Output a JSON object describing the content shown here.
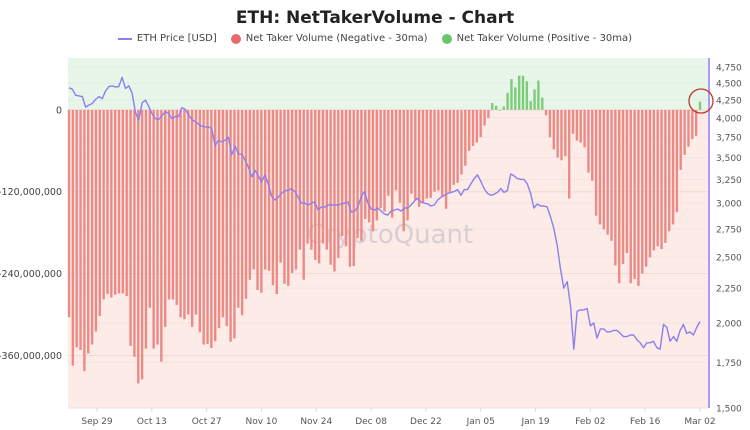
{
  "chart_data": {
    "type": "bar+line",
    "title": "ETH: NetTakerVolume - Chart",
    "watermark": "CryptoQuant",
    "legend": [
      {
        "name": "ETH Price [USD]",
        "kind": "line",
        "color": "#8b7ff0"
      },
      {
        "name": "Net Taker Volume (Negative - 30ma)",
        "kind": "dot",
        "color": "#e86b6b"
      },
      {
        "name": "Net Taker Volume (Positive - 30ma)",
        "kind": "dot",
        "color": "#6cc46a"
      }
    ],
    "legend_position": "top-center",
    "x_tick_labels": [
      "Sep 29",
      "Oct 13",
      "Oct 27",
      "Nov 10",
      "Nov 24",
      "Dec 08",
      "Dec 22",
      "Jan 05",
      "Jan 19",
      "Feb 02",
      "Feb 16",
      "Mar 02"
    ],
    "x_start_date": "Sep 22",
    "x_end_date": "Mar 03",
    "left_axis": {
      "ticks": [
        0,
        -120000000,
        -240000000,
        -360000000
      ],
      "tick_labels": [
        "0",
        "-120,000,000",
        "-240,000,000",
        "-360,000,000"
      ],
      "range": [
        -437000000,
        76000000
      ]
    },
    "right_axis": {
      "scale": "log",
      "ticks": [
        4750,
        4500,
        4250,
        4000,
        3750,
        3500,
        3250,
        3000,
        2750,
        2500,
        2250,
        2000,
        1750,
        1500
      ],
      "tick_labels": [
        "4,750",
        "4,500",
        "4,250",
        "4,000",
        "3,750",
        "3,500",
        "3,250",
        "3,000",
        "2,750",
        "2,500",
        "2,250",
        "2,000",
        "1,750",
        "1,500"
      ],
      "range": [
        1500,
        4900
      ]
    },
    "net_taker_volume_millions": [
      -304,
      -375,
      -348,
      -352,
      -383,
      -357,
      -344,
      -325,
      -302,
      -278,
      -270,
      -275,
      -271,
      -269,
      -269,
      -273,
      -346,
      -362,
      -401,
      -395,
      -350,
      -290,
      -350,
      -344,
      -369,
      -318,
      -278,
      -278,
      -286,
      -304,
      -307,
      -300,
      -318,
      -300,
      -326,
      -344,
      -343,
      -349,
      -339,
      -320,
      -304,
      -317,
      -340,
      -335,
      -290,
      -301,
      -277,
      -249,
      -234,
      -264,
      -268,
      -234,
      -236,
      -257,
      -270,
      -224,
      -255,
      -258,
      -239,
      -234,
      -205,
      -249,
      -196,
      -205,
      -220,
      -225,
      -196,
      -205,
      -227,
      -237,
      -217,
      -185,
      -200,
      -230,
      -229,
      -188,
      -192,
      -160,
      -165,
      -178,
      -162,
      -144,
      -149,
      -126,
      -158,
      -118,
      -136,
      -178,
      -162,
      -123,
      -132,
      -142,
      -137,
      -130,
      -129,
      -120,
      -118,
      -128,
      -145,
      -120,
      -110,
      -107,
      -95,
      -82,
      -60,
      -53,
      -48,
      -40,
      -23,
      -12,
      10,
      6,
      0,
      5,
      25,
      45,
      33,
      50,
      50,
      42,
      13,
      30,
      43,
      18,
      -8,
      -40,
      -58,
      -70,
      -74,
      -68,
      -130,
      -35,
      -45,
      -48,
      -55,
      -92,
      -104,
      -155,
      -168,
      -175,
      -183,
      -192,
      -228,
      -254,
      -226,
      -210,
      -254,
      -248,
      -258,
      -240,
      -230,
      -216,
      -206,
      -200,
      -204,
      -195,
      -178,
      -168,
      -150,
      -88,
      -66,
      -54,
      -43,
      -38,
      12
    ],
    "eth_price_usd": [
      4430,
      4410,
      4320,
      4310,
      4300,
      4150,
      4180,
      4200,
      4260,
      4300,
      4270,
      4380,
      4450,
      4460,
      4440,
      4450,
      4590,
      4420,
      4460,
      4350,
      4080,
      3970,
      4210,
      4250,
      4160,
      4060,
      3990,
      3980,
      4030,
      4090,
      4060,
      3990,
      4020,
      4020,
      4140,
      4120,
      4040,
      3980,
      3950,
      3920,
      3890,
      3880,
      3880,
      3860,
      3640,
      3710,
      3690,
      3710,
      3750,
      3530,
      3640,
      3540,
      3540,
      3470,
      3390,
      3280,
      3350,
      3290,
      3220,
      3300,
      3200,
      3070,
      3030,
      3060,
      3100,
      3130,
      3130,
      3150,
      3120,
      3060,
      3000,
      3000,
      2980,
      3000,
      3010,
      2930,
      2960,
      2960,
      2980,
      2980,
      2980,
      2980,
      2990,
      3000,
      3010,
      2910,
      2920,
      2960,
      3070,
      3120,
      3000,
      2940,
      2930,
      2950,
      2920,
      2890,
      2880,
      2920,
      2930,
      2940,
      2920,
      2950,
      2950,
      2980,
      3020,
      3050,
      3010,
      3000,
      2990,
      2970,
      2980,
      3030,
      3060,
      3080,
      3100,
      3110,
      3120,
      3140,
      3080,
      3140,
      3140,
      3200,
      3260,
      3300,
      3230,
      3150,
      3100,
      3080,
      3090,
      3110,
      3150,
      3110,
      3130,
      3310,
      3290,
      3260,
      3250,
      3250,
      3200,
      3100,
      2950,
      2990,
      2970,
      2970,
      2960,
      2860,
      2750,
      2600,
      2400,
      2250,
      2300,
      2120,
      1830,
      2080,
      2090,
      2090,
      2100,
      1980,
      2000,
      1900,
      1960,
      1960,
      1940,
      1940,
      1950,
      1950,
      1930,
      1910,
      1910,
      1920,
      1920,
      1890,
      1870,
      1840,
      1870,
      1870,
      1880,
      1840,
      1830,
      1990,
      1970,
      1880,
      1910,
      1880,
      1950,
      1990,
      1930,
      1940,
      1920,
      1970,
      2010
    ]
  }
}
